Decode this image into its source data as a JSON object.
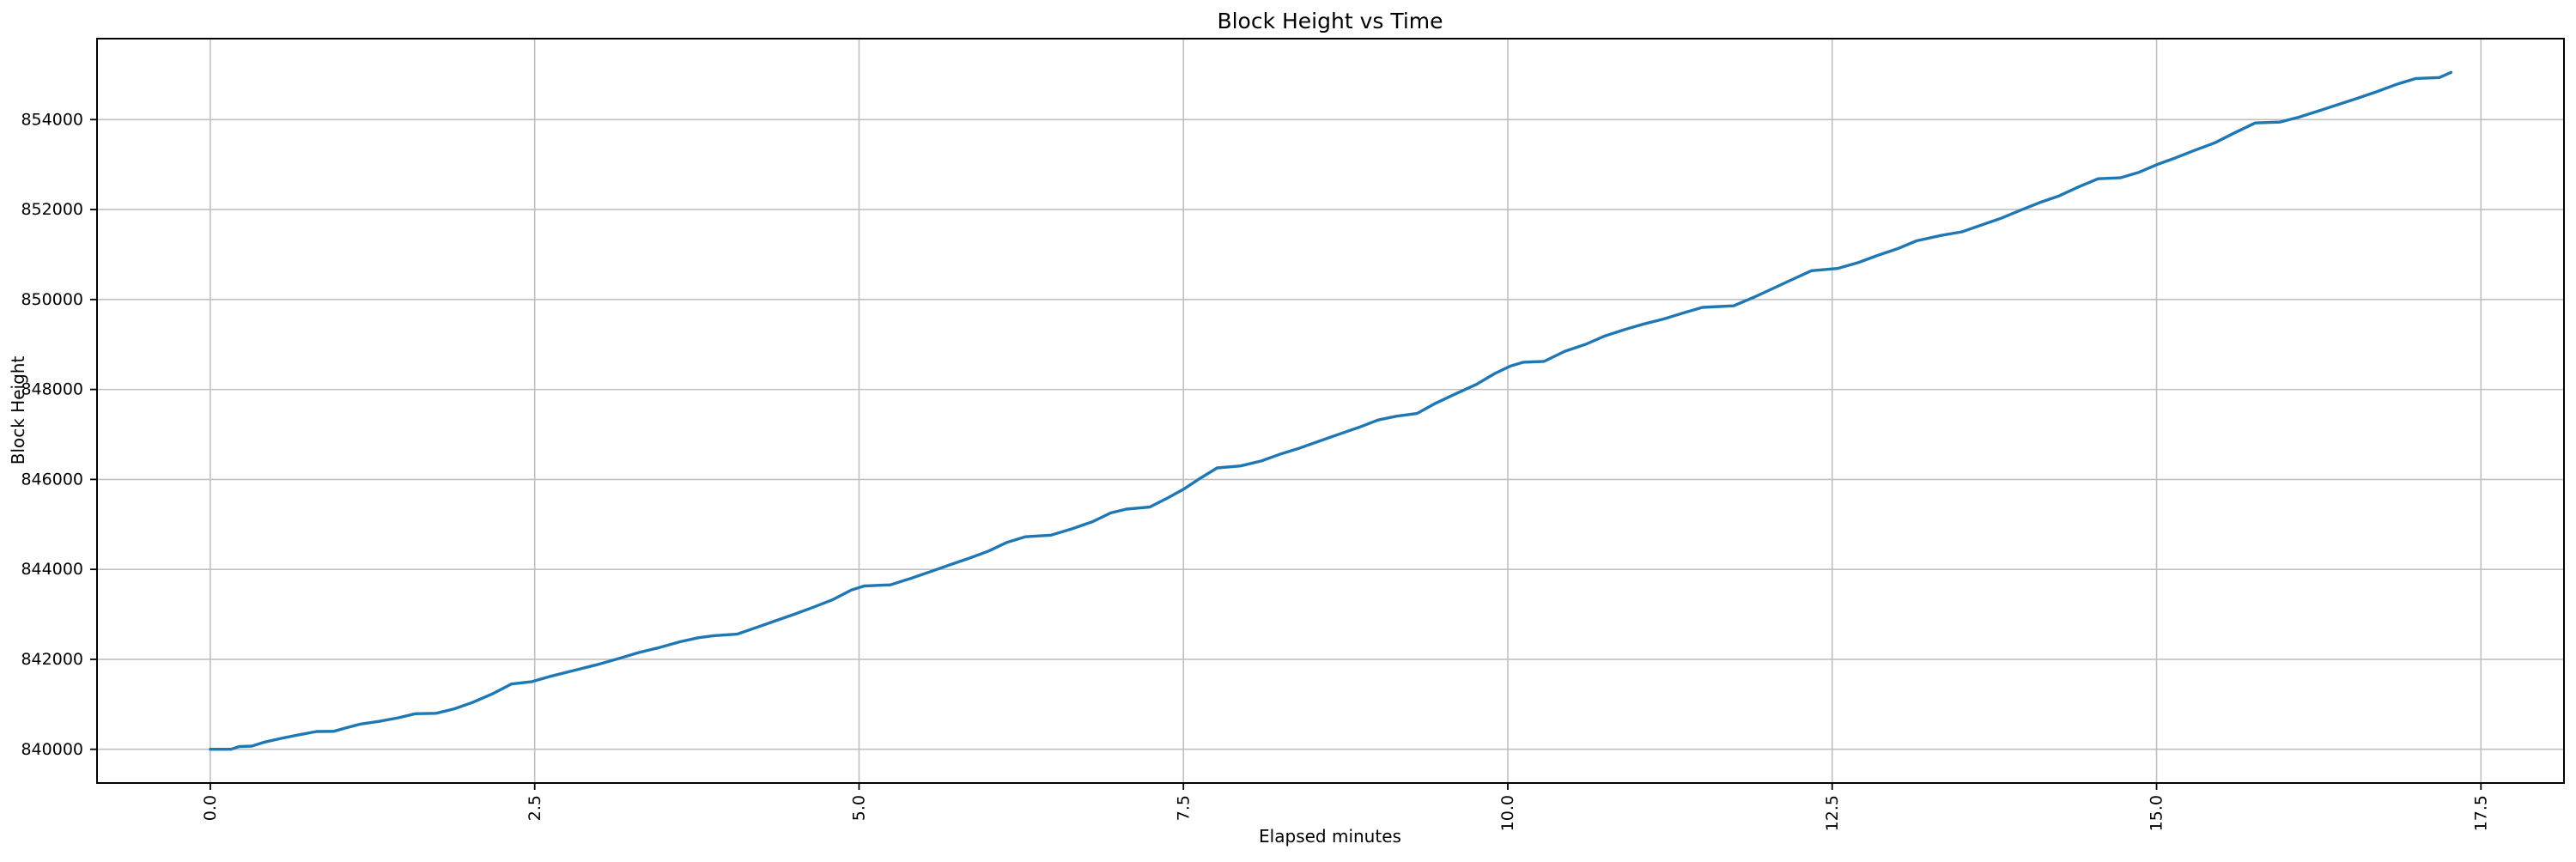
{
  "figure": {
    "title": "Block Height vs Time",
    "xlabel": "Elapsed minutes",
    "ylabel": "Block Height"
  },
  "chart_data": {
    "type": "line",
    "title": "Block Height vs Time",
    "xlabel": "Elapsed minutes",
    "ylabel": "Block Height",
    "grid": true,
    "legend": "none",
    "line_color": "#1f77b4",
    "grid_color": "#c0c0c0",
    "spine_color": "#000000",
    "xlim": [
      -0.873,
      18.14
    ],
    "ylim": [
      839250,
      855800
    ],
    "x_ticks": [
      0.0,
      2.5,
      5.0,
      7.5,
      10.0,
      12.5,
      15.0,
      17.5
    ],
    "x_tick_labels": [
      "0.0",
      "2.5",
      "5.0",
      "7.5",
      "10.0",
      "12.5",
      "15.0",
      "17.5"
    ],
    "y_ticks": [
      840000,
      842000,
      844000,
      846000,
      848000,
      850000,
      852000,
      854000
    ],
    "y_tick_labels": [
      "840000",
      "842000",
      "844000",
      "846000",
      "848000",
      "850000",
      "852000",
      "854000"
    ],
    "series": [
      {
        "name": "block-height",
        "points": [
          [
            0.0,
            840000
          ],
          [
            0.16,
            840000
          ],
          [
            0.22,
            840060
          ],
          [
            0.32,
            840070
          ],
          [
            0.42,
            840160
          ],
          [
            0.55,
            840245
          ],
          [
            0.68,
            840320
          ],
          [
            0.82,
            840395
          ],
          [
            0.95,
            840400
          ],
          [
            1.05,
            840480
          ],
          [
            1.15,
            840555
          ],
          [
            1.3,
            840620
          ],
          [
            1.45,
            840700
          ],
          [
            1.58,
            840790
          ],
          [
            1.74,
            840800
          ],
          [
            1.88,
            840900
          ],
          [
            2.02,
            841040
          ],
          [
            2.18,
            841240
          ],
          [
            2.32,
            841450
          ],
          [
            2.48,
            841505
          ],
          [
            2.62,
            841620
          ],
          [
            2.8,
            841750
          ],
          [
            2.98,
            841880
          ],
          [
            3.14,
            842010
          ],
          [
            3.3,
            842150
          ],
          [
            3.46,
            842260
          ],
          [
            3.62,
            842390
          ],
          [
            3.76,
            842480
          ],
          [
            3.88,
            842525
          ],
          [
            4.06,
            842560
          ],
          [
            4.2,
            842700
          ],
          [
            4.35,
            842850
          ],
          [
            4.5,
            843000
          ],
          [
            4.64,
            843150
          ],
          [
            4.8,
            843330
          ],
          [
            4.94,
            843540
          ],
          [
            5.04,
            843630
          ],
          [
            5.24,
            843655
          ],
          [
            5.4,
            843800
          ],
          [
            5.55,
            843950
          ],
          [
            5.7,
            844100
          ],
          [
            5.85,
            844250
          ],
          [
            6.0,
            844410
          ],
          [
            6.14,
            844600
          ],
          [
            6.28,
            844725
          ],
          [
            6.48,
            844760
          ],
          [
            6.64,
            844900
          ],
          [
            6.8,
            845060
          ],
          [
            6.94,
            845255
          ],
          [
            7.06,
            845340
          ],
          [
            7.24,
            845385
          ],
          [
            7.38,
            845590
          ],
          [
            7.5,
            845780
          ],
          [
            7.62,
            846010
          ],
          [
            7.76,
            846255
          ],
          [
            7.94,
            846300
          ],
          [
            8.1,
            846410
          ],
          [
            8.24,
            846555
          ],
          [
            8.4,
            846700
          ],
          [
            8.55,
            846855
          ],
          [
            8.7,
            847005
          ],
          [
            8.85,
            847155
          ],
          [
            9.0,
            847320
          ],
          [
            9.14,
            847405
          ],
          [
            9.3,
            847465
          ],
          [
            9.44,
            847690
          ],
          [
            9.6,
            847905
          ],
          [
            9.76,
            848115
          ],
          [
            9.9,
            848355
          ],
          [
            10.02,
            848520
          ],
          [
            10.12,
            848605
          ],
          [
            10.28,
            848625
          ],
          [
            10.44,
            848850
          ],
          [
            10.6,
            849005
          ],
          [
            10.74,
            849180
          ],
          [
            10.9,
            849330
          ],
          [
            11.04,
            849450
          ],
          [
            11.2,
            849565
          ],
          [
            11.35,
            849700
          ],
          [
            11.5,
            849825
          ],
          [
            11.74,
            849860
          ],
          [
            11.9,
            850055
          ],
          [
            12.05,
            850255
          ],
          [
            12.2,
            850455
          ],
          [
            12.34,
            850640
          ],
          [
            12.54,
            850690
          ],
          [
            12.7,
            850820
          ],
          [
            12.85,
            850980
          ],
          [
            13.0,
            851125
          ],
          [
            13.15,
            851305
          ],
          [
            13.34,
            851425
          ],
          [
            13.5,
            851505
          ],
          [
            13.65,
            851655
          ],
          [
            13.8,
            851805
          ],
          [
            13.95,
            851985
          ],
          [
            14.1,
            852155
          ],
          [
            14.25,
            852305
          ],
          [
            14.4,
            852505
          ],
          [
            14.55,
            852685
          ],
          [
            14.72,
            852705
          ],
          [
            14.86,
            852825
          ],
          [
            15.0,
            852995
          ],
          [
            15.15,
            853155
          ],
          [
            15.3,
            853325
          ],
          [
            15.45,
            853485
          ],
          [
            15.6,
            853705
          ],
          [
            15.76,
            853925
          ],
          [
            15.95,
            853945
          ],
          [
            16.1,
            854055
          ],
          [
            16.24,
            854185
          ],
          [
            16.4,
            854335
          ],
          [
            16.55,
            854475
          ],
          [
            16.7,
            854625
          ],
          [
            16.85,
            854785
          ],
          [
            17.0,
            854915
          ],
          [
            17.18,
            854935
          ],
          [
            17.27,
            855050
          ]
        ]
      }
    ]
  }
}
